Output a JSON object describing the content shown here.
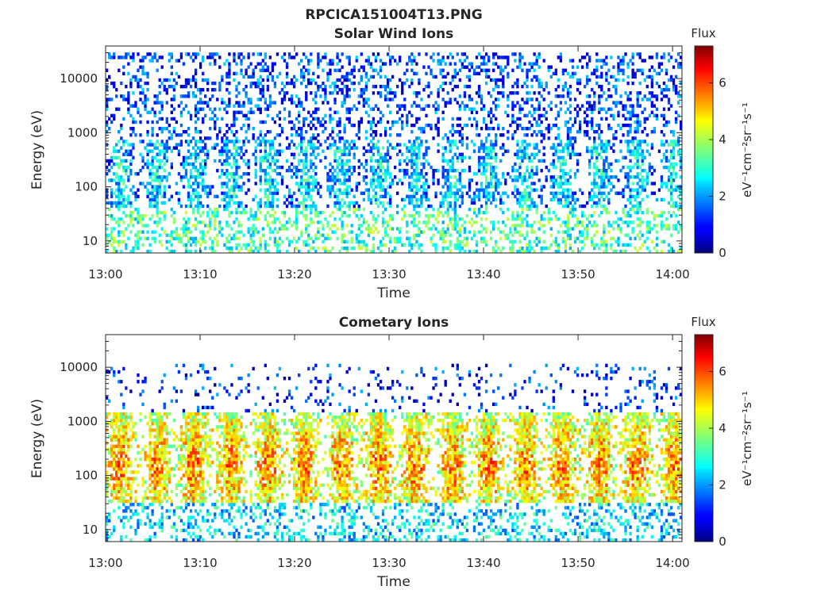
{
  "figure": {
    "suptitle": "RPCICA151004T13.PNG"
  },
  "chart_data": [
    {
      "type": "heatmap",
      "title": "Solar Wind Ions",
      "xlabel": "Time",
      "ylabel": "Energy (eV)",
      "x_ticks": [
        "13:00",
        "13:10",
        "13:20",
        "13:30",
        "13:40",
        "13:50",
        "14:00"
      ],
      "x_range": [
        "13:00",
        "14:01"
      ],
      "y_scale": "log",
      "y_ticks": [
        10,
        100,
        1000,
        10000
      ],
      "y_tick_labels": [
        "10",
        "100",
        "1000",
        "10000"
      ],
      "y_range": [
        6,
        40000
      ],
      "colorbar": {
        "title": "Flux",
        "units": "eV⁻¹cm⁻²sr⁻¹s⁻¹",
        "range": [
          0,
          7.3
        ],
        "ticks": [
          0,
          2,
          4,
          6
        ],
        "colormap": "jet"
      },
      "cycle_minutes": 3.9,
      "bands": [
        {
          "energy_low": 6,
          "energy_high": 40,
          "flux_mean": 3.2,
          "coverage": 0.35
        },
        {
          "energy_low": 40,
          "energy_high": 700,
          "flux_mean": 2.0,
          "coverage": 0.6,
          "modulated": true
        },
        {
          "energy_low": 700,
          "energy_high": 30000,
          "flux_mean": 1.4,
          "coverage": 0.3
        }
      ]
    },
    {
      "type": "heatmap",
      "title": "Cometary Ions",
      "xlabel": "Time",
      "ylabel": "Energy (eV)",
      "x_ticks": [
        "13:00",
        "13:10",
        "13:20",
        "13:30",
        "13:40",
        "13:50",
        "14:00"
      ],
      "x_range": [
        "13:00",
        "14:01"
      ],
      "y_scale": "log",
      "y_ticks": [
        10,
        100,
        1000,
        10000
      ],
      "y_tick_labels": [
        "10",
        "100",
        "1000",
        "10000"
      ],
      "y_range": [
        6,
        40000
      ],
      "colorbar": {
        "title": "Flux",
        "units": "eV⁻¹cm⁻²sr⁻¹s⁻¹",
        "range": [
          0,
          7.3
        ],
        "ticks": [
          0,
          2,
          4,
          6
        ],
        "colormap": "jet"
      },
      "cycle_minutes": 3.9,
      "bands": [
        {
          "energy_low": 6,
          "energy_high": 30,
          "flux_mean": 2.5,
          "coverage": 0.3
        },
        {
          "energy_low": 30,
          "energy_high": 1500,
          "flux_mean": 4.2,
          "coverage": 0.85,
          "modulated": true,
          "peak_energy": 150,
          "peak_flux": 5.5
        },
        {
          "energy_low": 1500,
          "energy_high": 12000,
          "flux_mean": 1.2,
          "coverage": 0.1
        }
      ]
    }
  ]
}
